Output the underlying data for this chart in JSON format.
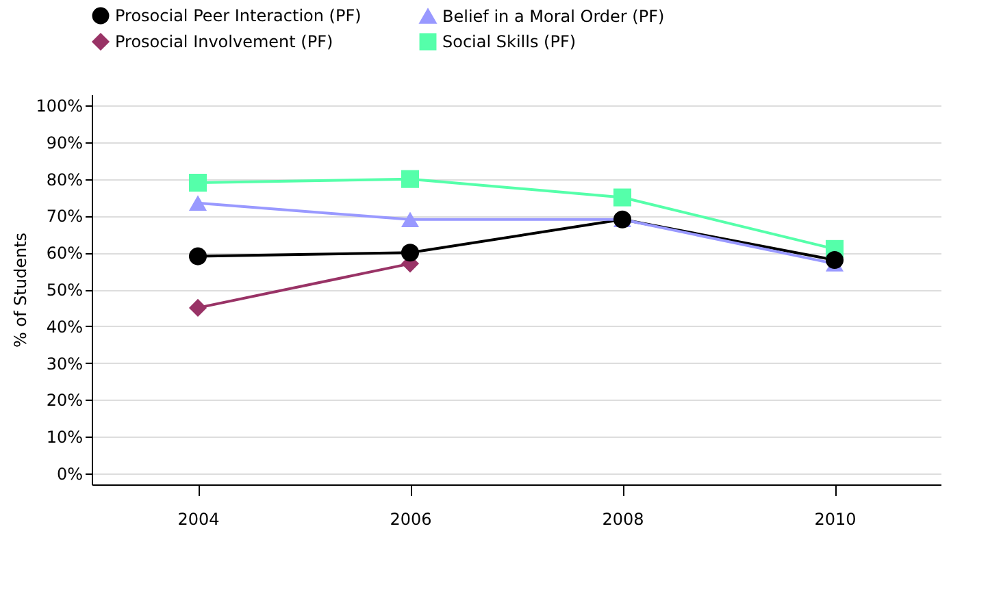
{
  "chart_data": {
    "type": "line",
    "ylabel": "% of Students",
    "categories": [
      "2004",
      "2006",
      "2008",
      "2010"
    ],
    "series": [
      {
        "name": "Prosocial Peer Interaction (PF)",
        "color": "#000000",
        "marker": "circle",
        "values": [
          59,
          60,
          69,
          58
        ]
      },
      {
        "name": "Prosocial Involvement (PF)",
        "color": "#993366",
        "marker": "diamond",
        "values": [
          45,
          57,
          null,
          null
        ]
      },
      {
        "name": "Belief in a Moral Order (PF)",
        "color": "#9999ff",
        "marker": "triangle",
        "values": [
          73.5,
          69,
          69,
          57
        ]
      },
      {
        "name": "Social Skills (PF)",
        "color": "#55ffaa",
        "marker": "square",
        "values": [
          79,
          80,
          75,
          61
        ]
      }
    ],
    "ylim": [
      -3,
      103
    ],
    "yticks": [
      {
        "value": 0,
        "label": "0%"
      },
      {
        "value": 10,
        "label": "10%"
      },
      {
        "value": 20,
        "label": "20%"
      },
      {
        "value": 30,
        "label": "30%"
      },
      {
        "value": 40,
        "label": "40%"
      },
      {
        "value": 50,
        "label": "50%"
      },
      {
        "value": 60,
        "label": "60%"
      },
      {
        "value": 70,
        "label": "70%"
      },
      {
        "value": 80,
        "label": "80%"
      },
      {
        "value": 90,
        "label": "90%"
      },
      {
        "value": 100,
        "label": "100%"
      }
    ],
    "grid": "y",
    "legend": "top left"
  }
}
